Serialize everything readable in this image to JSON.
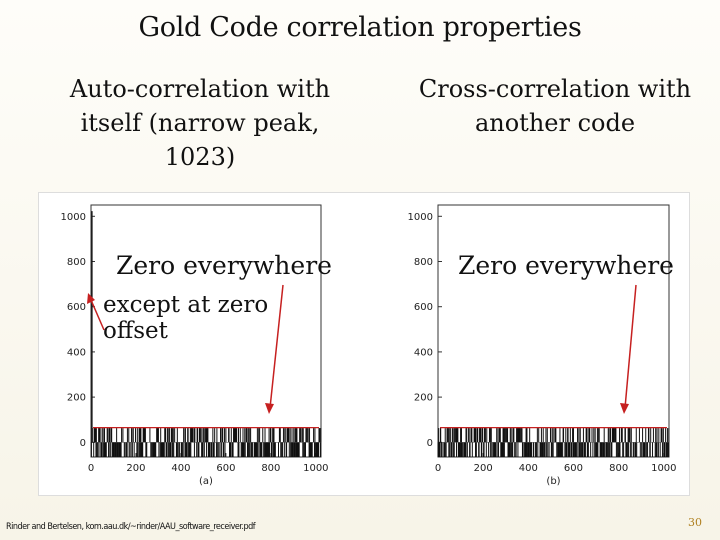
{
  "slide": {
    "title": "Gold Code correlation properties",
    "subhead_left": "Auto-correlation with itself (narrow peak, 1023)",
    "subhead_right": "Cross-correlation with another code",
    "annotation_left_line1": "Zero everywhere",
    "annotation_left_line2": "except at zero offset",
    "annotation_right": "Zero everywhere",
    "source": "Rinder and Bertelsen, kom.aau.dk/~rinder/AAU_software_receiver.pdf",
    "page_number": "30",
    "accent_color": "#b08020",
    "arrow_color": "#c62020"
  },
  "chart_data": [
    {
      "type": "bar",
      "panel_label": "(a)",
      "x_ticks": [
        "0",
        "200",
        "400",
        "600",
        "800",
        "1000"
      ],
      "y_ticks": [
        "0",
        "200",
        "400",
        "600",
        "800",
        "1000"
      ],
      "xlim": [
        0,
        1023
      ],
      "ylim": [
        -65,
        1050
      ],
      "peak": {
        "x": 0,
        "y": 1023
      },
      "threshold": 65,
      "description_values": [
        -65,
        -1,
        63
      ]
    },
    {
      "type": "bar",
      "panel_label": "(b)",
      "x_ticks": [
        "0",
        "200",
        "400",
        "600",
        "800",
        "1000"
      ],
      "y_ticks": [
        "0",
        "200",
        "400",
        "600",
        "800",
        "1000"
      ],
      "xlim": [
        0,
        1023
      ],
      "ylim": [
        -65,
        1050
      ],
      "threshold": 65,
      "description_values": [
        -65,
        -1,
        63
      ]
    }
  ]
}
